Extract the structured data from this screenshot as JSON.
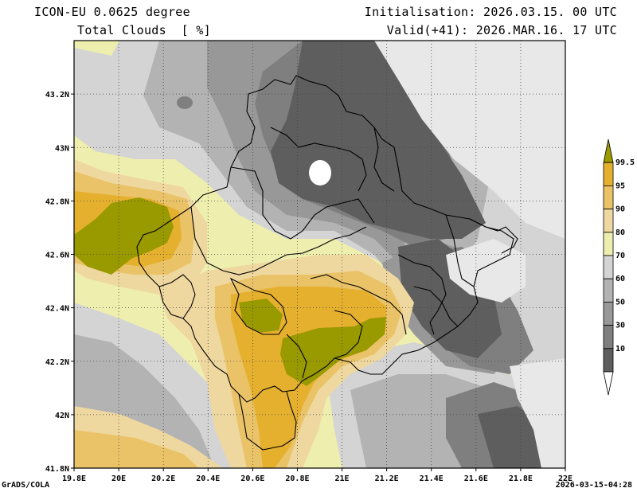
{
  "header": {
    "model_title": "ICON-EU 0.0625 degree",
    "variable_title": "Total Clouds  [ %]",
    "initialisation": "Initialisation: 2026.03.15. 00 UTC",
    "valid": "Valid(+41): 2026.MAR.16. 17 UTC"
  },
  "footer": {
    "software": "GrADS/COLA",
    "created": "2026-03-15-04:28"
  },
  "axes": {
    "lon_ticks": [
      "19.8E",
      "20E",
      "20.2E",
      "20.4E",
      "20.6E",
      "20.8E",
      "21E",
      "21.2E",
      "21.4E",
      "21.6E",
      "21.8E",
      "22E"
    ],
    "lat_ticks": [
      "43.2N",
      "43N",
      "42.8N",
      "42.6N",
      "42.4N",
      "42.2N",
      "42N",
      "41.8N"
    ],
    "lon_range": [
      19.8,
      22.0
    ],
    "lat_range": [
      41.8,
      43.4
    ]
  },
  "colorbar": {
    "labels": [
      "99.5",
      "95",
      "90",
      "80",
      "70",
      "60",
      "50",
      "30",
      "10"
    ],
    "colors": [
      "#999900",
      "#e6b02f",
      "#eac368",
      "#efd8a0",
      "#eeeeaf",
      "#d4d4d4",
      "#b3b3b3",
      "#989898",
      "#7f7f7f",
      "#5e5e5e",
      "#ffffff"
    ]
  },
  "palette": {
    "clear": "#e8e8e8",
    "very_dark": "#5e5e5e",
    "dark": "#7f7f7f",
    "mid_dark": "#989898",
    "mid": "#b3b3b3",
    "light_grey": "#d4d4d4",
    "pale_yellow": "#eeeeaf",
    "tan": "#efd8a0",
    "light_orange": "#eac368",
    "orange": "#e6b02f",
    "olive": "#999900"
  }
}
